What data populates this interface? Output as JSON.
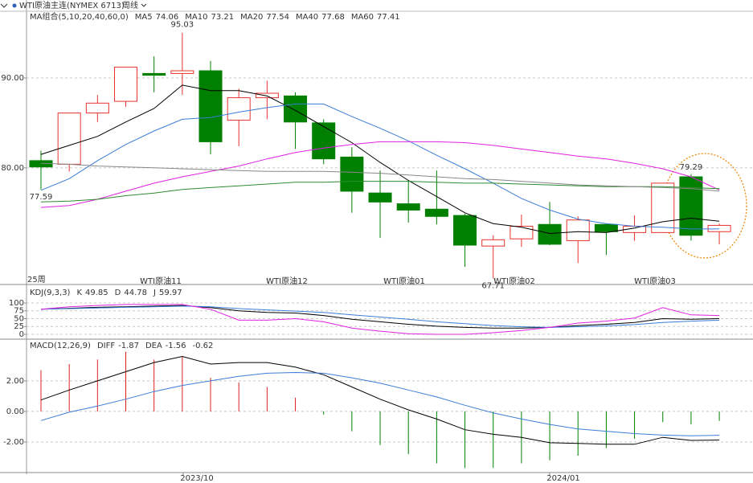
{
  "header": {
    "title": "WTI原油主连(NYMEX 6713)",
    "period_selector": "周线"
  },
  "period": "25周",
  "contracts": [
    "WTI原油11",
    "WTI原油12",
    "WTI原油01",
    "WTI原油02",
    "WTI原油03"
  ],
  "x_axis": [
    "2023/10",
    "2024/01"
  ],
  "chart_data": [
    {
      "type": "candlestick",
      "title": "MA组合(5,10,20,40,60,0)",
      "up_color": "#e8322d",
      "down_color": "#007f00",
      "open": [
        80.8,
        80.4,
        86.1,
        87.4,
        90.5,
        90.5,
        90.8,
        85.3,
        87.8,
        88.0,
        85.0,
        81.2,
        77.2,
        76.0,
        75.4,
        74.7,
        71.3,
        72.1,
        73.7,
        71.9,
        73.7,
        72.8,
        72.8,
        79.0,
        72.9
      ],
      "high": [
        81.9,
        86.1,
        88.1,
        91.2,
        92.4,
        95.03,
        91.9,
        88.8,
        89.7,
        88.4,
        85.4,
        82.3,
        79.7,
        78.6,
        79.7,
        74.9,
        72.5,
        74.8,
        76.2,
        74.6,
        73.8,
        74.7,
        78.3,
        79.29,
        73.8
      ],
      "low": [
        77.59,
        79.6,
        85.1,
        86.8,
        88.4,
        88.1,
        81.5,
        82.4,
        85.4,
        82.1,
        80.4,
        75.0,
        72.2,
        73.9,
        73.7,
        69.0,
        67.71,
        71.2,
        71.4,
        69.4,
        70.3,
        71.9,
        72.8,
        71.9,
        71.5
      ],
      "close": [
        80.1,
        86.1,
        87.2,
        91.2,
        90.3,
        90.8,
        82.9,
        87.8,
        88.3,
        85.1,
        81.0,
        77.4,
        76.2,
        75.3,
        74.6,
        71.4,
        72.0,
        73.5,
        71.5,
        74.2,
        72.9,
        73.5,
        78.3,
        72.5,
        73.6
      ],
      "series": [
        {
          "name": "MA5",
          "color": "#000000",
          "values": [
            81.5,
            82.5,
            83.5,
            85.1,
            86.6,
            89.2,
            88.6,
            88.6,
            88.0,
            86.4,
            84.6,
            82.8,
            80.6,
            78.6,
            76.8,
            75.0,
            73.8,
            73.4,
            72.7,
            72.9,
            72.8,
            73.3,
            74.0,
            74.4,
            74.06
          ]
        },
        {
          "name": "MA10",
          "color": "#3b7dd8",
          "values": [
            77.5,
            78.8,
            80.8,
            82.6,
            84.1,
            85.4,
            85.6,
            86.2,
            86.7,
            87.1,
            87.1,
            85.7,
            84.4,
            83.0,
            81.4,
            79.9,
            78.3,
            76.6,
            75.3,
            74.3,
            73.8,
            73.5,
            73.4,
            73.2,
            73.21
          ]
        },
        {
          "name": "MA20",
          "color": "#e020e0",
          "values": [
            75.6,
            75.8,
            76.5,
            77.4,
            78.3,
            79.0,
            79.6,
            80.2,
            81.0,
            81.7,
            82.2,
            82.6,
            82.9,
            82.9,
            82.9,
            82.8,
            82.5,
            82.1,
            81.7,
            81.3,
            81.0,
            80.5,
            79.9,
            79.0,
            77.54
          ]
        },
        {
          "name": "MA40",
          "color": "#2e8b2e",
          "values": [
            76.2,
            76.3,
            76.5,
            76.9,
            77.2,
            77.6,
            77.8,
            78.0,
            78.2,
            78.4,
            78.4,
            78.5,
            78.5,
            78.5,
            78.4,
            78.3,
            78.3,
            78.2,
            78.1,
            78.0,
            77.9,
            77.9,
            77.9,
            77.8,
            77.68
          ]
        },
        {
          "name": "MA60",
          "color": "#888888",
          "values": [
            80.5,
            80.4,
            80.2,
            80.1,
            80.0,
            79.9,
            79.8,
            79.7,
            79.6,
            79.6,
            79.6,
            79.5,
            79.4,
            79.2,
            79.0,
            78.8,
            78.7,
            78.5,
            78.3,
            78.1,
            78.0,
            77.9,
            77.8,
            77.7,
            77.41
          ]
        }
      ],
      "ylim": [
        67.2,
        97.6
      ],
      "yticks": [
        {
          "value": 80,
          "label": "80.00"
        },
        {
          "value": 90,
          "label": "90.00"
        }
      ],
      "grid": true
    },
    {
      "type": "line",
      "title": "KDJ(9,3,3)",
      "series": [
        {
          "name": "K",
          "color": "#000000",
          "values": [
            80,
            83,
            86,
            88,
            90,
            92,
            85,
            75,
            70,
            68,
            60,
            48,
            40,
            32,
            26,
            22,
            20,
            20,
            22,
            28,
            32,
            38,
            50,
            48,
            49.85
          ]
        },
        {
          "name": "D",
          "color": "#3b7dd8",
          "values": [
            80,
            82,
            84,
            86,
            88,
            90,
            88,
            82,
            78,
            74,
            70,
            62,
            55,
            48,
            40,
            34,
            28,
            24,
            22,
            24,
            27,
            31,
            38,
            42,
            44.78
          ]
        },
        {
          "name": "J",
          "color": "#e020e0",
          "values": [
            80,
            88,
            92,
            95,
            95,
            95,
            80,
            45,
            45,
            50,
            40,
            20,
            10,
            2,
            0,
            0,
            5,
            12,
            22,
            36,
            42,
            52,
            85,
            62,
            59.97
          ]
        }
      ],
      "ylim": [
        -15.4,
        153.8
      ],
      "yticks": [
        0,
        25,
        50,
        75,
        100
      ],
      "grid": true
    },
    {
      "type": "macd",
      "title": "MACD(12,26,9)",
      "series": [
        {
          "name": "DIFF",
          "color": "#000000",
          "values": [
            0.75,
            1.4,
            2.0,
            2.6,
            3.2,
            3.6,
            3.1,
            3.2,
            3.2,
            2.9,
            2.4,
            1.6,
            0.8,
            0.1,
            -0.5,
            -1.2,
            -1.5,
            -1.7,
            -2.05,
            -2.1,
            -2.15,
            -2.15,
            -1.7,
            -1.9,
            -1.87
          ]
        },
        {
          "name": "DEA",
          "color": "#3b7dd8",
          "values": [
            -0.6,
            -0.05,
            0.35,
            0.8,
            1.3,
            1.7,
            2.0,
            2.3,
            2.5,
            2.55,
            2.5,
            2.2,
            1.85,
            1.4,
            0.95,
            0.4,
            -0.1,
            -0.5,
            -0.85,
            -1.15,
            -1.3,
            -1.45,
            -1.55,
            -1.6,
            -1.56
          ]
        }
      ],
      "histogram": {
        "up_color": "#e02020",
        "down_color": "#008000",
        "values": [
          2.7,
          3.1,
          3.4,
          3.9,
          3.4,
          3.6,
          2.2,
          1.9,
          1.6,
          0.9,
          -0.2,
          -1.3,
          -2.2,
          -2.8,
          -3.4,
          -3.7,
          -3.7,
          -3.4,
          -3.2,
          -2.9,
          -2.4,
          -1.8,
          -0.7,
          -0.85,
          -0.62
        ]
      },
      "ylim": [
        -3.95,
        4.68
      ],
      "yticks": [
        {
          "value": -2,
          "label": "-2.00"
        },
        {
          "value": 0,
          "label": "0.00"
        },
        {
          "value": 2,
          "label": "2.00"
        }
      ],
      "grid": true
    }
  ]
}
